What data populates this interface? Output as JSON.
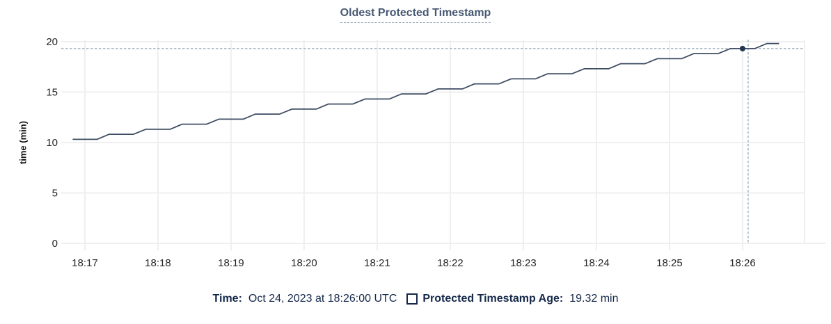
{
  "title": "Oldest Protected Timestamp",
  "colors": {
    "title": "#475872",
    "title_underline": "#97a4b8",
    "line": "#3e4c63",
    "marker": "#243650",
    "crosshair": "#9db1bd",
    "gridline": "#efefef",
    "tick_text": "#262626",
    "legend_text": "#16294a"
  },
  "legend": {
    "time_label": "Time:",
    "time_value": "Oct 24, 2023 at 18:26:00 UTC",
    "series_swatch": "square-outline",
    "series_label": "Protected Timestamp Age:",
    "series_value": "19.32 min"
  },
  "chart_data": {
    "type": "line",
    "title": "Oldest Protected Timestamp",
    "xlabel": "",
    "ylabel": "time (min)",
    "ylim": [
      0,
      20
    ],
    "y_ticks": [
      0,
      5,
      10,
      15,
      20
    ],
    "x_unit": "seconds relative to 18:17:00 UTC",
    "xlim": [
      -19.4,
      590.9
    ],
    "x_ticks": [
      {
        "t": 0,
        "label": "18:17"
      },
      {
        "t": 60,
        "label": "18:18"
      },
      {
        "t": 120,
        "label": "18:19"
      },
      {
        "t": 180,
        "label": "18:20"
      },
      {
        "t": 240,
        "label": "18:21"
      },
      {
        "t": 300,
        "label": "18:22"
      },
      {
        "t": 360,
        "label": "18:23"
      },
      {
        "t": 420,
        "label": "18:24"
      },
      {
        "t": 480,
        "label": "18:25"
      },
      {
        "t": 540,
        "label": "18:26"
      }
    ],
    "grid": true,
    "legend_position": "bottom",
    "series": [
      {
        "name": "Protected Timestamp Age",
        "color": "#3e4c63",
        "points": [
          [
            -10,
            10.32
          ],
          [
            0,
            10.32
          ],
          [
            10,
            10.32
          ],
          [
            20,
            10.82
          ],
          [
            30,
            10.82
          ],
          [
            40,
            10.82
          ],
          [
            50,
            11.32
          ],
          [
            60,
            11.32
          ],
          [
            70,
            11.32
          ],
          [
            80,
            11.82
          ],
          [
            90,
            11.82
          ],
          [
            100,
            11.82
          ],
          [
            110,
            12.32
          ],
          [
            120,
            12.32
          ],
          [
            130,
            12.32
          ],
          [
            140,
            12.82
          ],
          [
            150,
            12.82
          ],
          [
            160,
            12.82
          ],
          [
            170,
            13.32
          ],
          [
            180,
            13.32
          ],
          [
            190,
            13.32
          ],
          [
            200,
            13.82
          ],
          [
            210,
            13.82
          ],
          [
            220,
            13.82
          ],
          [
            230,
            14.32
          ],
          [
            240,
            14.32
          ],
          [
            250,
            14.32
          ],
          [
            260,
            14.82
          ],
          [
            270,
            14.82
          ],
          [
            280,
            14.82
          ],
          [
            290,
            15.32
          ],
          [
            300,
            15.32
          ],
          [
            310,
            15.32
          ],
          [
            320,
            15.82
          ],
          [
            330,
            15.82
          ],
          [
            340,
            15.82
          ],
          [
            350,
            16.32
          ],
          [
            360,
            16.32
          ],
          [
            370,
            16.32
          ],
          [
            380,
            16.82
          ],
          [
            390,
            16.82
          ],
          [
            400,
            16.82
          ],
          [
            410,
            17.32
          ],
          [
            420,
            17.32
          ],
          [
            430,
            17.32
          ],
          [
            440,
            17.82
          ],
          [
            450,
            17.82
          ],
          [
            460,
            17.82
          ],
          [
            470,
            18.32
          ],
          [
            480,
            18.32
          ],
          [
            490,
            18.32
          ],
          [
            500,
            18.82
          ],
          [
            510,
            18.82
          ],
          [
            520,
            18.82
          ],
          [
            530,
            19.32
          ],
          [
            540,
            19.32
          ],
          [
            550,
            19.32
          ],
          [
            560,
            19.82
          ],
          [
            570,
            19.82
          ]
        ]
      }
    ],
    "hover": {
      "t": 540,
      "v": 19.32,
      "crosshair_t": 544.6,
      "time": "Oct 24, 2023 at 18:26:00 UTC",
      "value_label": "19.32 min"
    }
  }
}
